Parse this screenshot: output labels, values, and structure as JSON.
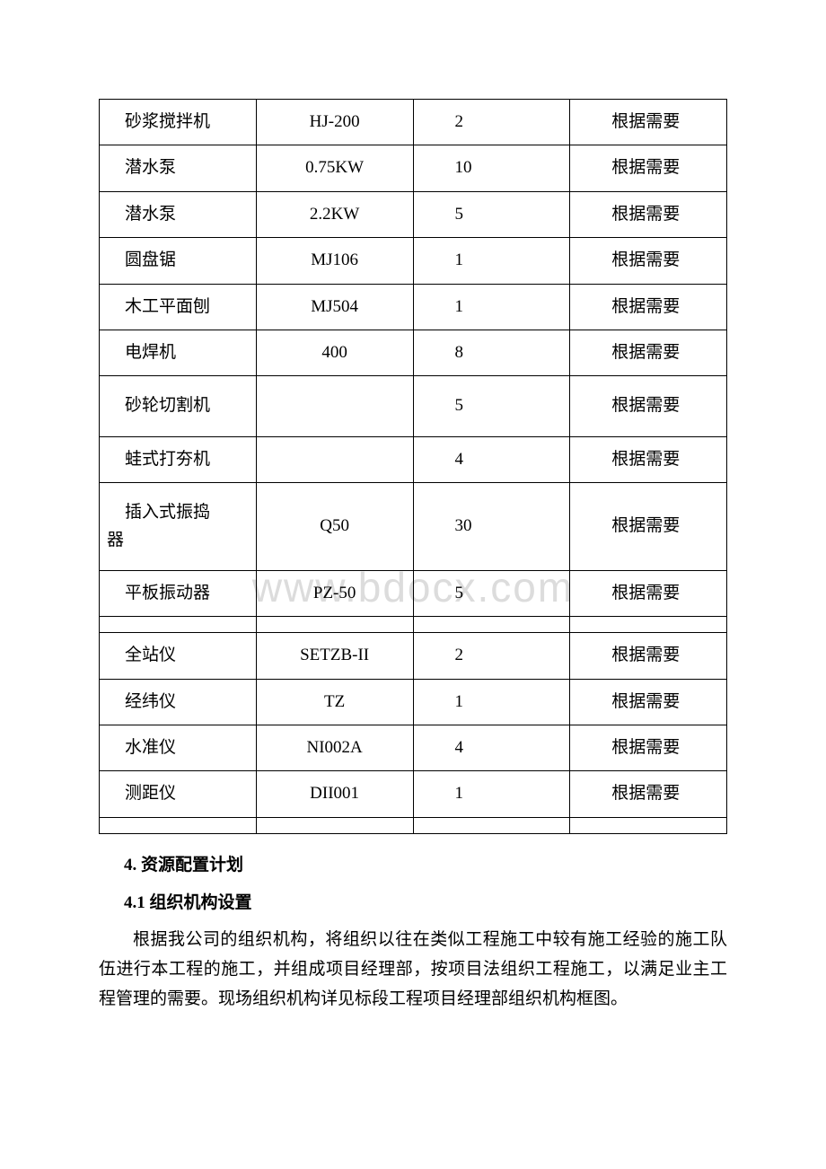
{
  "watermark": "www.bdocx.com",
  "table": {
    "rows": [
      {
        "name": "砂浆搅拌机",
        "model": "HJ-200",
        "qty": "2",
        "note": "根据需要",
        "tall": false
      },
      {
        "name": "潜水泵",
        "model": "0.75KW",
        "qty": "10",
        "note": "根据需要",
        "tall": false
      },
      {
        "name": "潜水泵",
        "model": "2.2KW",
        "qty": "5",
        "note": "根据需要",
        "tall": false
      },
      {
        "name": "圆盘锯",
        "model": "MJ106",
        "qty": "1",
        "note": "根据需要",
        "tall": false
      },
      {
        "name": "木工平面刨",
        "model": "MJ504",
        "qty": "1",
        "note": "根据需要",
        "tall": false
      },
      {
        "name": "电焊机",
        "model": "400",
        "qty": "8",
        "note": "根据需要",
        "tall": false
      },
      {
        "name": "砂轮切割机",
        "model": "",
        "qty": "5",
        "note": "根据需要",
        "tall": true
      },
      {
        "name": "蛙式打夯机",
        "model": "",
        "qty": "4",
        "note": "根据需要",
        "tall": false
      },
      {
        "name": "插入式振捣器",
        "model": "Q50",
        "qty": "30",
        "note": "根据需要",
        "tall": true,
        "multiline": true
      },
      {
        "name": "平板振动器",
        "model": "PZ-50",
        "qty": "5",
        "note": "根据需要",
        "tall": false
      },
      {
        "empty": true
      },
      {
        "name": "全站仪",
        "model": "SETZB-II",
        "qty": "2",
        "note": "根据需要",
        "tall": false
      },
      {
        "name": "经纬仪",
        "model": "TZ",
        "qty": "1",
        "note": "根据需要",
        "tall": false
      },
      {
        "name": "水准仪",
        "model": "NI002A",
        "qty": "4",
        "note": "根据需要",
        "tall": false
      },
      {
        "name": "测距仪",
        "model": "DII001",
        "qty": "1",
        "note": "根据需要",
        "tall": false
      },
      {
        "empty": true
      }
    ]
  },
  "headings": {
    "section4": "4. 资源配置计划",
    "section41": "4.1 组织机构设置"
  },
  "paragraph1": "根据我公司的组织机构，将组织以往在类似工程施工中较有施工经验的施工队伍进行本工程的施工，并组成项目经理部，按项目法组织工程施工，以满足业主工程管理的需要。现场组织机构详见标段工程项目经理部组织机构框图。"
}
